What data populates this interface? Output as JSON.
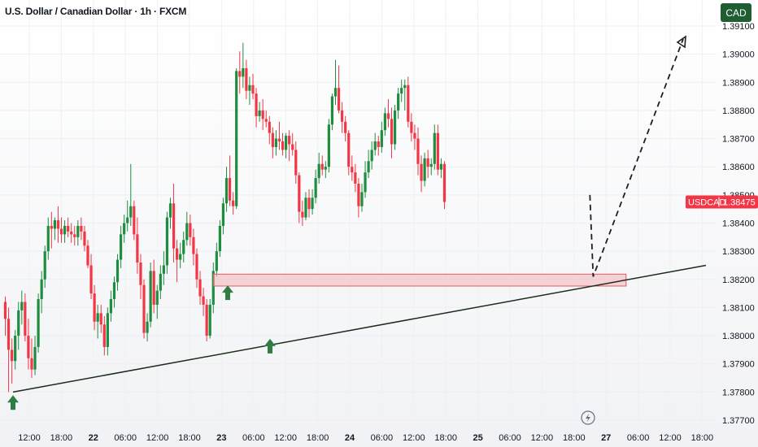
{
  "header": {
    "symbol_title": "U.S. Dollar / Canadian Dollar · 1h · FXCM",
    "currency_button": "CAD"
  },
  "price_tag": {
    "symbol": "USDCAD",
    "value": "1.38475",
    "color": "#f23645"
  },
  "colors": {
    "up": "#1e8d3f",
    "down": "#f23645",
    "zone_fill": "#f4b4b8",
    "zone_border": "#e05a63",
    "arrow": "#2f7d45",
    "trendline": "#1d2b1d"
  },
  "icons": {
    "arrows": "up-arrow-icon",
    "lightning": "lightning-icon"
  },
  "chart_data": {
    "type": "candlestick",
    "title": "U.S. Dollar / Canadian Dollar · 1h · FXCM",
    "yaxis": {
      "ticks": [
        "1.39100",
        "1.39000",
        "1.38900",
        "1.38800",
        "1.38700",
        "1.38600",
        "1.38500",
        "1.38400",
        "1.38300",
        "1.38200",
        "1.38100",
        "1.38000",
        "1.37900",
        "1.37800",
        "1.37700"
      ],
      "range": [
        1.377,
        1.391
      ],
      "side": "right"
    },
    "xaxis": {
      "ticks": [
        {
          "label": "12:00",
          "bold": false
        },
        {
          "label": "18:00",
          "bold": false
        },
        {
          "label": "22",
          "bold": true
        },
        {
          "label": "06:00",
          "bold": false
        },
        {
          "label": "12:00",
          "bold": false
        },
        {
          "label": "18:00",
          "bold": false
        },
        {
          "label": "23",
          "bold": true
        },
        {
          "label": "06:00",
          "bold": false
        },
        {
          "label": "12:00",
          "bold": false
        },
        {
          "label": "18:00",
          "bold": false
        },
        {
          "label": "24",
          "bold": true
        },
        {
          "label": "06:00",
          "bold": false
        },
        {
          "label": "12:00",
          "bold": false
        },
        {
          "label": "18:00",
          "bold": false
        },
        {
          "label": "25",
          "bold": true
        },
        {
          "label": "06:00",
          "bold": false
        },
        {
          "label": "12:00",
          "bold": false
        },
        {
          "label": "18:00",
          "bold": false
        },
        {
          "label": "27",
          "bold": true
        },
        {
          "label": "06:00",
          "bold": false
        },
        {
          "label": "12:00",
          "bold": false
        },
        {
          "label": "18:00",
          "bold": false
        }
      ]
    },
    "candles": [
      [
        1.3812,
        1.3814,
        1.38,
        1.3806
      ],
      [
        1.3806,
        1.381,
        1.378,
        1.3795
      ],
      [
        1.3795,
        1.3799,
        1.3783,
        1.3791
      ],
      [
        1.3791,
        1.3802,
        1.3788,
        1.38
      ],
      [
        1.38,
        1.3812,
        1.3795,
        1.3809
      ],
      [
        1.3809,
        1.3816,
        1.3804,
        1.3812
      ],
      [
        1.3812,
        1.3815,
        1.3798,
        1.38
      ],
      [
        1.38,
        1.3806,
        1.3788,
        1.3792
      ],
      [
        1.3792,
        1.3799,
        1.3785,
        1.3788
      ],
      [
        1.3788,
        1.38,
        1.3786,
        1.3796
      ],
      [
        1.3796,
        1.3815,
        1.3794,
        1.3813
      ],
      [
        1.3813,
        1.3823,
        1.3808,
        1.382
      ],
      [
        1.382,
        1.3832,
        1.3817,
        1.383
      ],
      [
        1.383,
        1.3842,
        1.3827,
        1.3839
      ],
      [
        1.3839,
        1.3844,
        1.3831,
        1.3838
      ],
      [
        1.3838,
        1.3842,
        1.3834,
        1.3841
      ],
      [
        1.3841,
        1.3846,
        1.3833,
        1.3838
      ],
      [
        1.3838,
        1.3842,
        1.3833,
        1.3836
      ],
      [
        1.3836,
        1.3841,
        1.3833,
        1.3839
      ],
      [
        1.3839,
        1.3842,
        1.3835,
        1.3837
      ],
      [
        1.3837,
        1.384,
        1.3833,
        1.3836
      ],
      [
        1.3836,
        1.3839,
        1.3832,
        1.3835
      ],
      [
        1.3835,
        1.3841,
        1.3832,
        1.3839
      ],
      [
        1.3839,
        1.3842,
        1.3834,
        1.3837
      ],
      [
        1.3837,
        1.3839,
        1.383,
        1.3832
      ],
      [
        1.3832,
        1.3834,
        1.3824,
        1.3825
      ],
      [
        1.3825,
        1.3829,
        1.3813,
        1.3815
      ],
      [
        1.3815,
        1.3818,
        1.3802,
        1.3805
      ],
      [
        1.3805,
        1.3811,
        1.3799,
        1.3808
      ],
      [
        1.3808,
        1.3811,
        1.3801,
        1.3804
      ],
      [
        1.3804,
        1.3807,
        1.3793,
        1.3796
      ],
      [
        1.3796,
        1.381,
        1.3793,
        1.3808
      ],
      [
        1.3808,
        1.3816,
        1.3805,
        1.3813
      ],
      [
        1.3813,
        1.3821,
        1.381,
        1.3819
      ],
      [
        1.3819,
        1.3829,
        1.3816,
        1.3827
      ],
      [
        1.3827,
        1.3839,
        1.3824,
        1.3836
      ],
      [
        1.3836,
        1.3843,
        1.3833,
        1.384
      ],
      [
        1.384,
        1.3848,
        1.3837,
        1.3842
      ],
      [
        1.3842,
        1.3861,
        1.3839,
        1.3846
      ],
      [
        1.3846,
        1.3848,
        1.3834,
        1.3836
      ],
      [
        1.3836,
        1.3842,
        1.3822,
        1.3826
      ],
      [
        1.3826,
        1.3829,
        1.3813,
        1.3818
      ],
      [
        1.3818,
        1.382,
        1.3799,
        1.3801
      ],
      [
        1.3801,
        1.3808,
        1.3798,
        1.3805
      ],
      [
        1.3805,
        1.3826,
        1.3803,
        1.3823
      ],
      [
        1.3823,
        1.3827,
        1.3808,
        1.3811
      ],
      [
        1.3811,
        1.3818,
        1.3806,
        1.3816
      ],
      [
        1.3816,
        1.3825,
        1.3813,
        1.3822
      ],
      [
        1.3822,
        1.383,
        1.3818,
        1.3825
      ],
      [
        1.3825,
        1.3844,
        1.3822,
        1.3842
      ],
      [
        1.3842,
        1.3849,
        1.3838,
        1.3847
      ],
      [
        1.3847,
        1.3854,
        1.3826,
        1.3831
      ],
      [
        1.3831,
        1.3834,
        1.3819,
        1.3827
      ],
      [
        1.3827,
        1.3833,
        1.3824,
        1.3829
      ],
      [
        1.3829,
        1.3837,
        1.3826,
        1.3834
      ],
      [
        1.3834,
        1.3844,
        1.3832,
        1.384
      ],
      [
        1.384,
        1.3843,
        1.3832,
        1.3835
      ],
      [
        1.3835,
        1.3838,
        1.3825,
        1.3829
      ],
      [
        1.3829,
        1.3831,
        1.3817,
        1.382
      ],
      [
        1.382,
        1.3823,
        1.3811,
        1.3814
      ],
      [
        1.3814,
        1.3817,
        1.3807,
        1.3811
      ],
      [
        1.3811,
        1.3813,
        1.3798,
        1.38
      ],
      [
        1.38,
        1.3813,
        1.3799,
        1.3811
      ],
      [
        1.3811,
        1.3826,
        1.3808,
        1.3823
      ],
      [
        1.3823,
        1.3833,
        1.3821,
        1.383
      ],
      [
        1.383,
        1.3841,
        1.3828,
        1.3839
      ],
      [
        1.3839,
        1.3849,
        1.3836,
        1.3847
      ],
      [
        1.3847,
        1.386,
        1.3844,
        1.3856
      ],
      [
        1.3856,
        1.3864,
        1.3846,
        1.3848
      ],
      [
        1.3848,
        1.3851,
        1.3843,
        1.3846
      ],
      [
        1.3846,
        1.3895,
        1.3845,
        1.3894
      ],
      [
        1.3894,
        1.3901,
        1.3886,
        1.3892
      ],
      [
        1.3892,
        1.3904,
        1.3888,
        1.3895
      ],
      [
        1.3895,
        1.3898,
        1.3884,
        1.3887
      ],
      [
        1.3887,
        1.3892,
        1.3882,
        1.3889
      ],
      [
        1.3889,
        1.3893,
        1.3884,
        1.3886
      ],
      [
        1.3886,
        1.3888,
        1.3874,
        1.3878
      ],
      [
        1.3878,
        1.3883,
        1.3876,
        1.388
      ],
      [
        1.388,
        1.3884,
        1.3873,
        1.3877
      ],
      [
        1.3877,
        1.388,
        1.3874,
        1.3876
      ],
      [
        1.3876,
        1.3878,
        1.3868,
        1.3872
      ],
      [
        1.3872,
        1.3874,
        1.3863,
        1.3867
      ],
      [
        1.3867,
        1.3873,
        1.3864,
        1.387
      ],
      [
        1.387,
        1.3876,
        1.3866,
        1.3869
      ],
      [
        1.3869,
        1.3872,
        1.3864,
        1.3866
      ],
      [
        1.3866,
        1.3872,
        1.3863,
        1.3871
      ],
      [
        1.3871,
        1.3873,
        1.3862,
        1.3868
      ],
      [
        1.3868,
        1.3872,
        1.3864,
        1.3866
      ],
      [
        1.3866,
        1.3869,
        1.3854,
        1.3857
      ],
      [
        1.3857,
        1.3858,
        1.384,
        1.3844
      ],
      [
        1.3844,
        1.3848,
        1.3839,
        1.3842
      ],
      [
        1.3842,
        1.3851,
        1.3841,
        1.3849
      ],
      [
        1.3849,
        1.3852,
        1.3842,
        1.3845
      ],
      [
        1.3845,
        1.3852,
        1.3843,
        1.3849
      ],
      [
        1.3849,
        1.3859,
        1.3847,
        1.3856
      ],
      [
        1.3856,
        1.3865,
        1.3854,
        1.3861
      ],
      [
        1.3861,
        1.3864,
        1.3857,
        1.3859
      ],
      [
        1.3859,
        1.3862,
        1.3856,
        1.386
      ],
      [
        1.386,
        1.3877,
        1.3858,
        1.3875
      ],
      [
        1.3875,
        1.3886,
        1.3873,
        1.3885
      ],
      [
        1.3885,
        1.3898,
        1.3882,
        1.3888
      ],
      [
        1.3888,
        1.3896,
        1.3879,
        1.388
      ],
      [
        1.388,
        1.3883,
        1.3872,
        1.3876
      ],
      [
        1.3876,
        1.3878,
        1.3869,
        1.3872
      ],
      [
        1.3872,
        1.3873,
        1.3857,
        1.386
      ],
      [
        1.386,
        1.3864,
        1.3855,
        1.3858
      ],
      [
        1.3858,
        1.3861,
        1.3851,
        1.3854
      ],
      [
        1.3854,
        1.3856,
        1.3842,
        1.3846
      ],
      [
        1.3846,
        1.3854,
        1.3844,
        1.3851
      ],
      [
        1.3851,
        1.3862,
        1.3849,
        1.3858
      ],
      [
        1.3858,
        1.3866,
        1.3856,
        1.3862
      ],
      [
        1.3862,
        1.3869,
        1.3859,
        1.3866
      ],
      [
        1.3866,
        1.3872,
        1.3864,
        1.3869
      ],
      [
        1.3869,
        1.3871,
        1.3864,
        1.3867
      ],
      [
        1.3867,
        1.3876,
        1.3865,
        1.3873
      ],
      [
        1.3873,
        1.3881,
        1.3871,
        1.3879
      ],
      [
        1.3879,
        1.3884,
        1.3874,
        1.3877
      ],
      [
        1.3877,
        1.3881,
        1.3863,
        1.3868
      ],
      [
        1.3868,
        1.3882,
        1.3866,
        1.388
      ],
      [
        1.388,
        1.3888,
        1.3877,
        1.3886
      ],
      [
        1.3886,
        1.3891,
        1.3883,
        1.3888
      ],
      [
        1.3888,
        1.3891,
        1.388,
        1.3889
      ],
      [
        1.3889,
        1.3892,
        1.3874,
        1.3876
      ],
      [
        1.3876,
        1.3879,
        1.3869,
        1.3872
      ],
      [
        1.3872,
        1.3875,
        1.3866,
        1.387
      ],
      [
        1.387,
        1.3874,
        1.3857,
        1.3861
      ],
      [
        1.3861,
        1.3864,
        1.3851,
        1.3855
      ],
      [
        1.3855,
        1.3865,
        1.3853,
        1.3863
      ],
      [
        1.3863,
        1.3866,
        1.3856,
        1.386
      ],
      [
        1.386,
        1.3863,
        1.3857,
        1.3861
      ],
      [
        1.3861,
        1.3875,
        1.3859,
        1.3872
      ],
      [
        1.3872,
        1.3875,
        1.3857,
        1.3859
      ],
      [
        1.3859,
        1.3863,
        1.3856,
        1.3861
      ],
      [
        1.3861,
        1.3862,
        1.3845,
        1.38475
      ]
    ],
    "annotations": {
      "trendline": [
        [
          0,
          1.378
        ],
        [
          219,
          1.3827
        ]
      ],
      "support_zone": {
        "x": [
          63,
          188
        ],
        "y": [
          1.38185,
          1.3821
        ]
      },
      "projection_path": [
        [
          180,
          1.385
        ],
        [
          181,
          1.3821
        ],
        [
          214,
          1.3905
        ]
      ],
      "up_arrows": [
        [
          1,
          1.3776
        ],
        [
          68,
          1.3815
        ],
        [
          80,
          1.3796
        ]
      ]
    }
  }
}
